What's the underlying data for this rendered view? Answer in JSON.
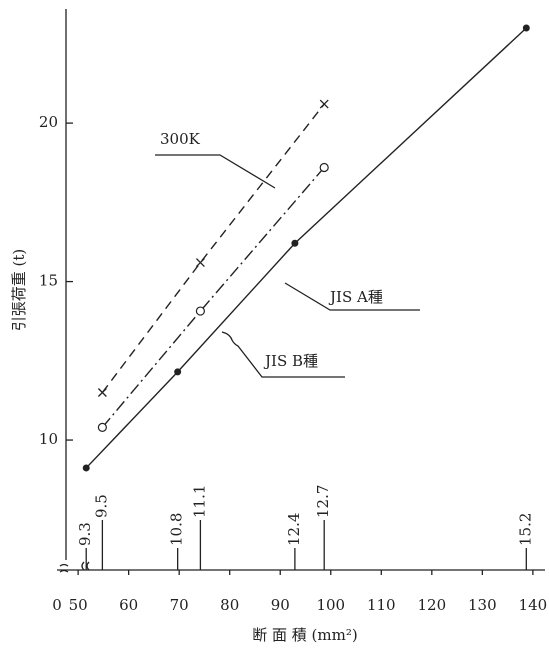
{
  "chart_data": {
    "type": "line",
    "x_label": "断 面 積 (mm²)",
    "y_label": "引張荷重 (t)",
    "x_origin_label": 0,
    "xlim": [
      47.6,
      142.4
    ],
    "xticks": [
      50,
      60,
      70,
      80,
      90,
      100,
      110,
      120,
      130,
      140
    ],
    "ylim": [
      5.9,
      23.6
    ],
    "yticks": [
      10,
      15,
      20
    ],
    "series": [
      {
        "name": "300K",
        "color": "#222",
        "style": "dashed",
        "marker": "cross",
        "x": [
          54.8,
          74.2,
          98.7
        ],
        "values": [
          11.5,
          15.6,
          20.6
        ]
      },
      {
        "name": "JIS B種",
        "color": "#222",
        "style": "dashdot",
        "marker": "open-circle",
        "x": [
          54.8,
          74.2,
          98.7
        ],
        "values": [
          10.4,
          14.07,
          18.6
        ]
      },
      {
        "name": "JIS A種",
        "color": "#222",
        "style": "solid",
        "marker": "dot",
        "x": [
          51.6,
          69.7,
          92.9,
          138.7
        ],
        "values": [
          9.12,
          12.15,
          16.21,
          23.0
        ]
      }
    ],
    "strand_markers": [
      {
        "x": 51.6,
        "label": "9.3"
      },
      {
        "x": 54.8,
        "label": "9.5"
      },
      {
        "x": 69.7,
        "label": "10.8"
      },
      {
        "x": 74.2,
        "label": "11.1"
      },
      {
        "x": 92.9,
        "label": "12.4"
      },
      {
        "x": 98.7,
        "label": "12.7"
      },
      {
        "x": 138.7,
        "label": "15.2"
      }
    ]
  }
}
